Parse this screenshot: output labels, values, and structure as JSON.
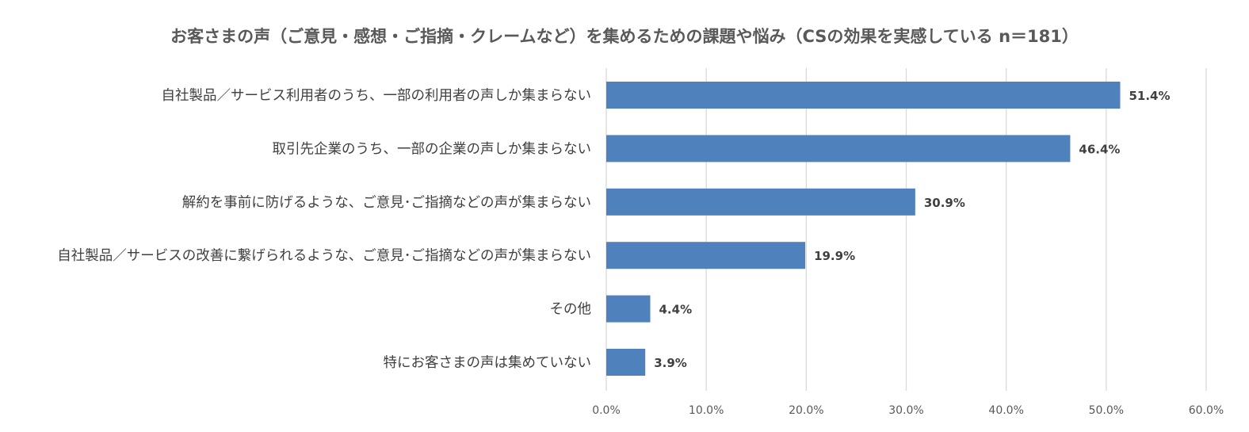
{
  "chart_data": {
    "type": "bar",
    "orientation": "horizontal",
    "title": "お客さまの声（ご意見・感想・ご指摘・クレームなど）を集めるための課題や悩み（CSの効果を実感している n＝181）",
    "categories": [
      "自社製品／サービス利用者のうち、一部の利用者の声しか集まらない",
      "取引先企業のうち、一部の企業の声しか集まらない",
      "解約を事前に防げるような、ご意見･ご指摘などの声が集まらない",
      "自社製品／サービスの改善に繋げられるような、ご意見･ご指摘などの声が集まらない",
      "その他",
      "特にお客さまの声は集めていない"
    ],
    "values": [
      51.4,
      46.4,
      30.9,
      19.9,
      4.4,
      3.9
    ],
    "value_labels": [
      "51.4%",
      "46.4%",
      "30.9%",
      "19.9%",
      "4.4%",
      "3.9%"
    ],
    "xlim": [
      0,
      60
    ],
    "x_ticks": [
      0,
      10,
      20,
      30,
      40,
      50,
      60
    ],
    "x_tick_labels": [
      "0.0%",
      "10.0%",
      "20.0%",
      "30.0%",
      "40.0%",
      "50.0%",
      "60.0%"
    ],
    "grid": true,
    "legend": "none",
    "bar_color": "#4f81bd"
  }
}
